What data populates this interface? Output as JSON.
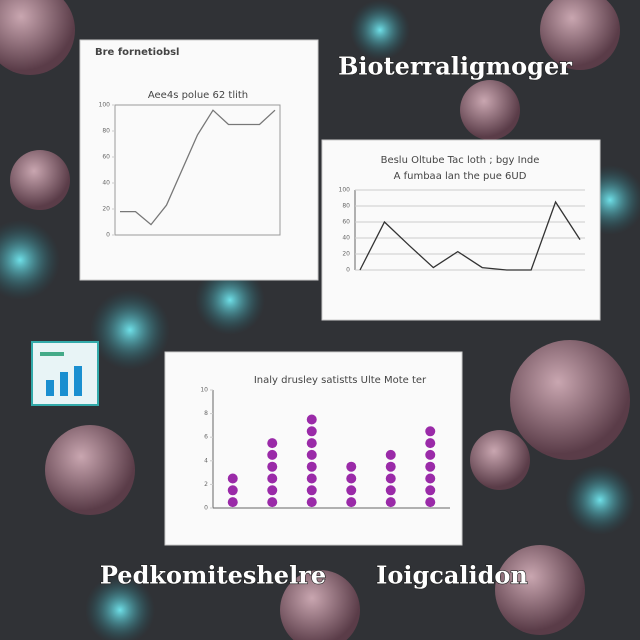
{
  "captions": [
    "Bioterraligmoger",
    "Pedkomiteshelre",
    "Ioigcalidon"
  ],
  "chart_data": [
    {
      "type": "line",
      "header": "Bre fornetiobsl",
      "title": "Aee4s polue 62 tlith",
      "categories": [
        null,
        null,
        null,
        null,
        null,
        null,
        null,
        null,
        null,
        null,
        null
      ],
      "values": [
        18,
        18,
        8,
        23,
        50,
        77,
        96,
        85,
        85,
        85,
        96
      ],
      "color": "#777",
      "ylim": [
        0,
        100
      ],
      "yticks": [
        0,
        20,
        40,
        60,
        80,
        100
      ],
      "grid": false
    },
    {
      "type": "line",
      "title": "Beslu Oltube Tac loth ; bgy Inde",
      "subtitle": "A fumbaa lan the pue 6UD",
      "categories": [
        null,
        null,
        null,
        null,
        null,
        null,
        null,
        null,
        null,
        null
      ],
      "values": [
        0,
        60,
        31,
        3,
        23,
        3,
        0,
        0,
        85,
        38
      ],
      "color": "#333",
      "ylim": [
        0,
        100
      ],
      "yticks": [
        0,
        20,
        40,
        60,
        80,
        100
      ],
      "grid": true
    },
    {
      "type": "dots",
      "title": "Inaly drusley satistts Ulte Mote ter",
      "categories": [
        null,
        null,
        null,
        null,
        null,
        null
      ],
      "values": [
        3,
        6,
        8,
        4,
        5,
        7
      ],
      "color": "#9a2aa8",
      "ylim": [
        0,
        10
      ],
      "yticks": [
        0,
        2,
        4,
        6,
        8,
        10
      ],
      "grid": false
    }
  ]
}
